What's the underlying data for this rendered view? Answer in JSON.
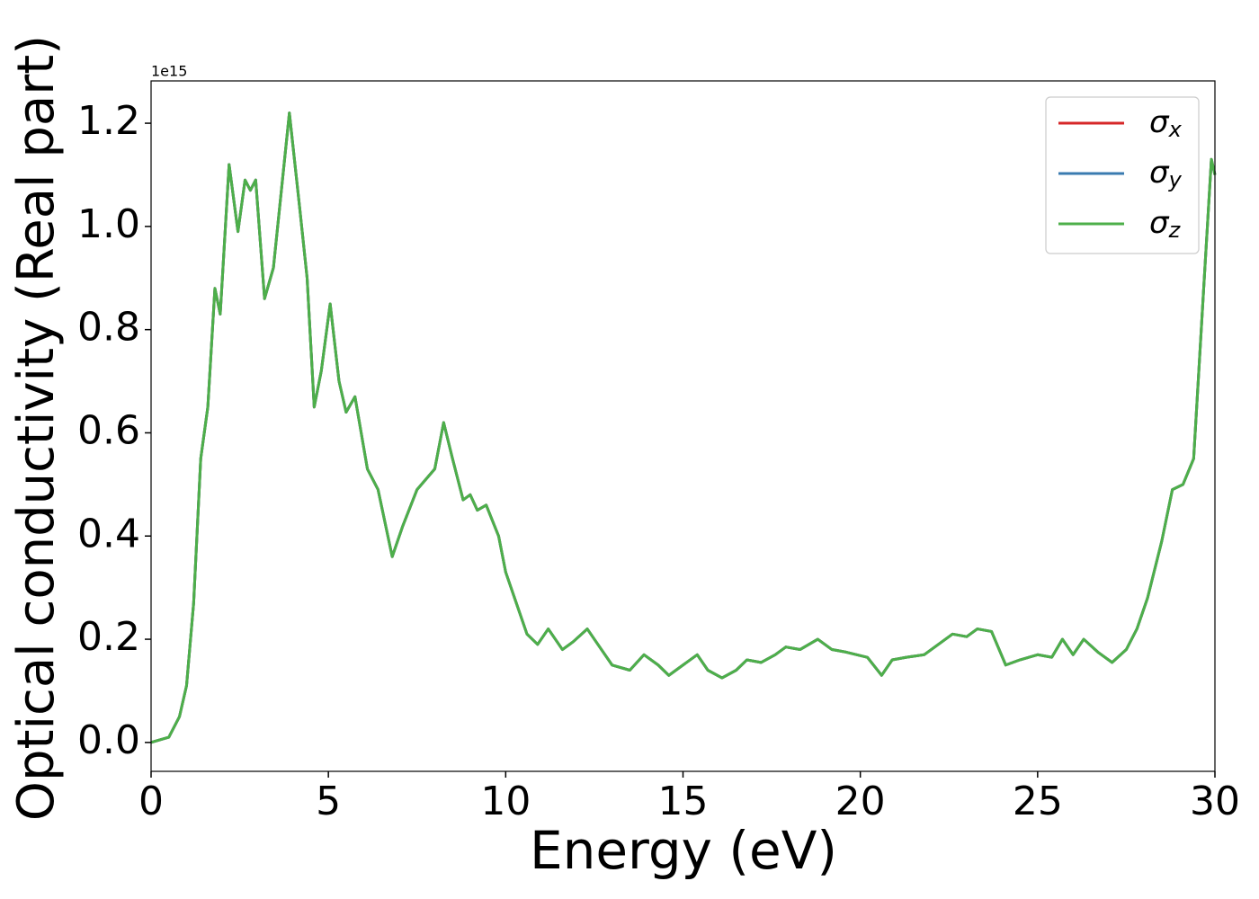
{
  "chart_data": {
    "type": "line",
    "xlabel": "Energy (eV)",
    "ylabel": "Optical conductivity (Real part)",
    "y_offset_label": "1e15",
    "x": [
      0,
      0.5,
      0.8,
      1.0,
      1.2,
      1.4,
      1.6,
      1.8,
      1.95,
      2.2,
      2.45,
      2.65,
      2.8,
      2.95,
      3.2,
      3.45,
      3.9,
      4.2,
      4.4,
      4.6,
      4.8,
      5.05,
      5.3,
      5.5,
      5.75,
      6.1,
      6.4,
      6.8,
      7.1,
      7.5,
      8.0,
      8.25,
      8.5,
      8.8,
      9.0,
      9.2,
      9.45,
      9.8,
      10.0,
      10.3,
      10.6,
      10.9,
      11.2,
      11.6,
      11.9,
      12.3,
      12.6,
      13.0,
      13.5,
      13.9,
      14.3,
      14.6,
      15.0,
      15.4,
      15.7,
      16.1,
      16.5,
      16.8,
      17.2,
      17.6,
      17.9,
      18.3,
      18.8,
      19.2,
      19.6,
      20.2,
      20.6,
      20.9,
      21.3,
      21.8,
      22.2,
      22.6,
      23.0,
      23.3,
      23.7,
      24.1,
      24.5,
      25.0,
      25.4,
      25.7,
      26.0,
      26.3,
      26.7,
      27.1,
      27.5,
      27.8,
      28.1,
      28.5,
      28.8,
      29.1,
      29.4,
      29.7,
      29.9,
      30
    ],
    "series": [
      {
        "name": "σx",
        "color": "#d62728",
        "values": [
          0,
          0.01,
          0.05,
          0.11,
          0.27,
          0.55,
          0.65,
          0.88,
          0.83,
          1.12,
          0.99,
          1.09,
          1.07,
          1.09,
          0.86,
          0.92,
          1.22,
          1.03,
          0.9,
          0.65,
          0.72,
          0.85,
          0.7,
          0.64,
          0.67,
          0.53,
          0.49,
          0.36,
          0.42,
          0.49,
          0.53,
          0.62,
          0.55,
          0.47,
          0.48,
          0.45,
          0.46,
          0.4,
          0.33,
          0.27,
          0.21,
          0.19,
          0.22,
          0.18,
          0.195,
          0.22,
          0.19,
          0.15,
          0.14,
          0.17,
          0.15,
          0.13,
          0.15,
          0.17,
          0.14,
          0.125,
          0.14,
          0.16,
          0.155,
          0.17,
          0.185,
          0.18,
          0.2,
          0.18,
          0.175,
          0.165,
          0.13,
          0.16,
          0.165,
          0.17,
          0.19,
          0.21,
          0.205,
          0.22,
          0.215,
          0.15,
          0.16,
          0.17,
          0.165,
          0.2,
          0.17,
          0.2,
          0.175,
          0.155,
          0.18,
          0.22,
          0.28,
          0.39,
          0.49,
          0.5,
          0.55,
          0.9,
          1.13,
          1.1
        ]
      },
      {
        "name": "σy",
        "color": "#3a7bb0",
        "values": [
          0,
          0.01,
          0.05,
          0.11,
          0.27,
          0.55,
          0.65,
          0.88,
          0.83,
          1.12,
          0.99,
          1.09,
          1.07,
          1.09,
          0.86,
          0.92,
          1.22,
          1.03,
          0.9,
          0.65,
          0.72,
          0.85,
          0.7,
          0.64,
          0.67,
          0.53,
          0.49,
          0.36,
          0.42,
          0.49,
          0.53,
          0.62,
          0.55,
          0.47,
          0.48,
          0.45,
          0.46,
          0.4,
          0.33,
          0.27,
          0.21,
          0.19,
          0.22,
          0.18,
          0.195,
          0.22,
          0.19,
          0.15,
          0.14,
          0.17,
          0.15,
          0.13,
          0.15,
          0.17,
          0.14,
          0.125,
          0.14,
          0.16,
          0.155,
          0.17,
          0.185,
          0.18,
          0.2,
          0.18,
          0.175,
          0.165,
          0.13,
          0.16,
          0.165,
          0.17,
          0.19,
          0.21,
          0.205,
          0.22,
          0.215,
          0.15,
          0.16,
          0.17,
          0.165,
          0.2,
          0.17,
          0.2,
          0.175,
          0.155,
          0.18,
          0.22,
          0.28,
          0.39,
          0.49,
          0.5,
          0.55,
          0.9,
          1.13,
          1.1
        ]
      },
      {
        "name": "σz",
        "color": "#4daf4a",
        "values": [
          0,
          0.01,
          0.05,
          0.11,
          0.27,
          0.55,
          0.65,
          0.88,
          0.83,
          1.12,
          0.99,
          1.09,
          1.07,
          1.09,
          0.86,
          0.92,
          1.22,
          1.03,
          0.9,
          0.65,
          0.72,
          0.85,
          0.7,
          0.64,
          0.67,
          0.53,
          0.49,
          0.36,
          0.42,
          0.49,
          0.53,
          0.62,
          0.55,
          0.47,
          0.48,
          0.45,
          0.46,
          0.4,
          0.33,
          0.27,
          0.21,
          0.19,
          0.22,
          0.18,
          0.195,
          0.22,
          0.19,
          0.15,
          0.14,
          0.17,
          0.15,
          0.13,
          0.15,
          0.17,
          0.14,
          0.125,
          0.14,
          0.16,
          0.155,
          0.17,
          0.185,
          0.18,
          0.2,
          0.18,
          0.175,
          0.165,
          0.13,
          0.16,
          0.165,
          0.17,
          0.19,
          0.21,
          0.205,
          0.22,
          0.215,
          0.15,
          0.16,
          0.17,
          0.165,
          0.2,
          0.17,
          0.2,
          0.175,
          0.155,
          0.18,
          0.22,
          0.28,
          0.39,
          0.49,
          0.5,
          0.55,
          0.9,
          1.13,
          1.1
        ]
      }
    ],
    "xlim": [
      0,
      30
    ],
    "xticks": [
      0,
      5,
      10,
      15,
      20,
      25,
      30
    ],
    "ylim": [
      -0.056,
      1.282
    ],
    "yticks": [
      {
        "value": 0,
        "label": "0.0"
      },
      0.2,
      0.4,
      0.6,
      0.8,
      {
        "value": 1,
        "label": "1.0"
      },
      1.2
    ],
    "grid": false,
    "legend": "upper right"
  }
}
